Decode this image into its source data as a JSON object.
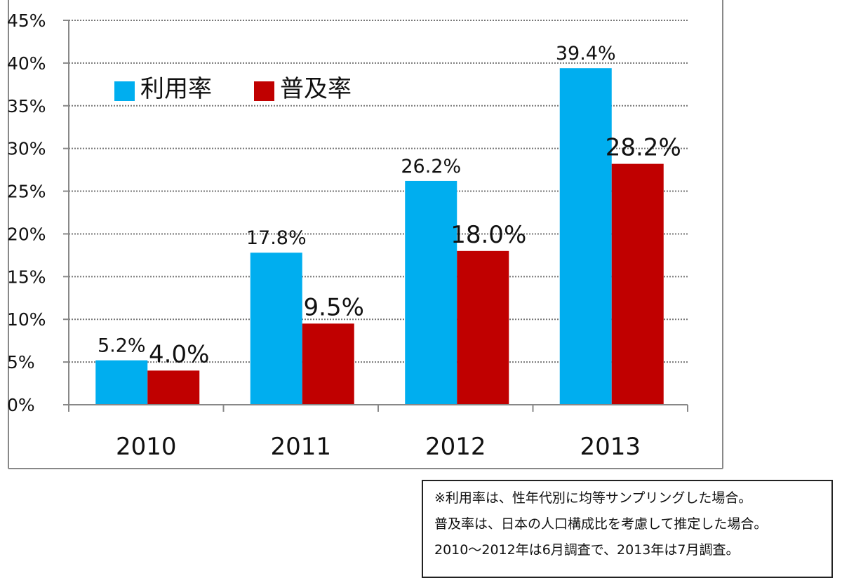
{
  "chart_data": {
    "type": "bar",
    "categories": [
      "2010",
      "2011",
      "2012",
      "2013"
    ],
    "series": [
      {
        "name": "利用率",
        "color": "#00aeef",
        "values": [
          5.2,
          17.8,
          26.2,
          39.4
        ],
        "labels": [
          "5.2%",
          "17.8%",
          "26.2%",
          "39.4%"
        ]
      },
      {
        "name": "普及率",
        "color": "#c00000",
        "values": [
          4.0,
          9.5,
          18.0,
          28.2
        ],
        "labels": [
          "4.0%",
          "9.5%",
          "18.0%",
          "28.2%"
        ]
      }
    ],
    "ylim": [
      0,
      45
    ],
    "yticks": [
      "0%",
      "5%",
      "10%",
      "15%",
      "20%",
      "25%",
      "30%",
      "35%",
      "40%",
      "45%"
    ],
    "grid": true,
    "legend_position": "top-left",
    "title": "",
    "xlabel": "",
    "ylabel": ""
  },
  "note": {
    "lines": [
      "※利用率は、性年代別に均等サンプリングした場合。",
      "普及率は、日本の人口構成比を考慮して推定した場合。",
      "2010～2012年は6月調査で、2013年は7月調査。"
    ]
  }
}
